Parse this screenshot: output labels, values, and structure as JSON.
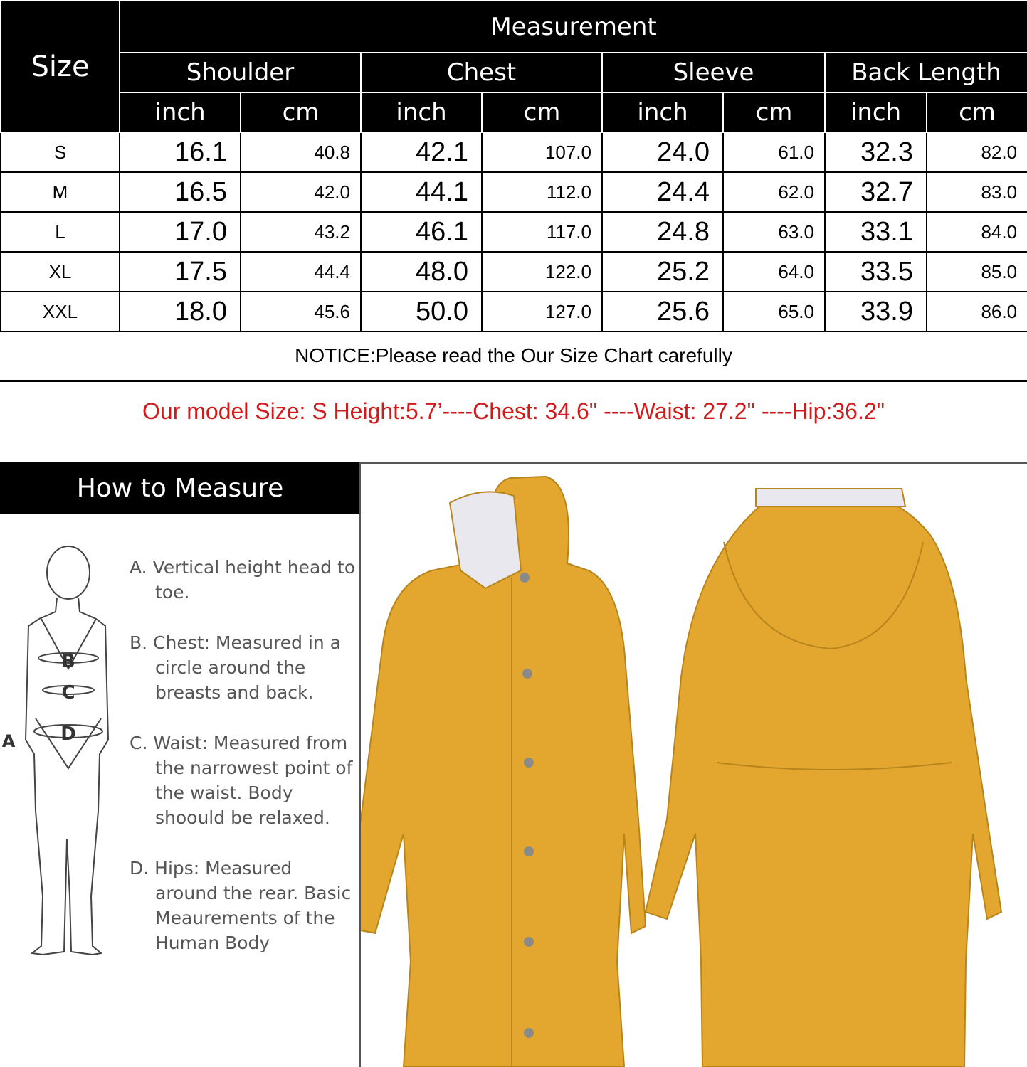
{
  "table": {
    "size_label": "Size",
    "measurement_label": "Measurement",
    "groups": [
      "Shoulder",
      "Chest",
      "Sleeve",
      "Back Length"
    ],
    "units": [
      "inch",
      "cm",
      "inch",
      "cm",
      "inch",
      "cm",
      "inch",
      "cm"
    ],
    "rows": [
      [
        "S",
        "16.1",
        "40.8",
        "42.1",
        "107.0",
        "24.0",
        "61.0",
        "32.3",
        "82.0"
      ],
      [
        "M",
        "16.5",
        "42.0",
        "44.1",
        "112.0",
        "24.4",
        "62.0",
        "32.7",
        "83.0"
      ],
      [
        "L",
        "17.0",
        "43.2",
        "46.1",
        "117.0",
        "24.8",
        "63.0",
        "33.1",
        "84.0"
      ],
      [
        "XL",
        "17.5",
        "44.4",
        "48.0",
        "122.0",
        "25.2",
        "64.0",
        "33.5",
        "85.0"
      ],
      [
        "XXL",
        "18.0",
        "45.6",
        "50.0",
        "127.0",
        "25.6",
        "65.0",
        "33.9",
        "86.0"
      ]
    ]
  },
  "notice": "NOTICE:Please read the Our Size Chart carefully",
  "model_info": "Our model Size: S    Height:5.7’----Chest: 34.6\" ----Waist: 27.2\" ----Hip:36.2\"",
  "model_color": "#d21a1a",
  "coat_color": "#e3a72f",
  "how_to": {
    "title": "How to Measure",
    "figure_labels": [
      "A",
      "B",
      "C",
      "D"
    ],
    "items": [
      "A. Vertical height head to toe.",
      "B. Chest: Measured in a circle around the breasts and back.",
      "C. Waist: Measured from the narrowest point of the waist. Body shoould be relaxed.",
      "D. Hips: Measured around the rear. Basic Meaurements of the Human Body"
    ]
  }
}
